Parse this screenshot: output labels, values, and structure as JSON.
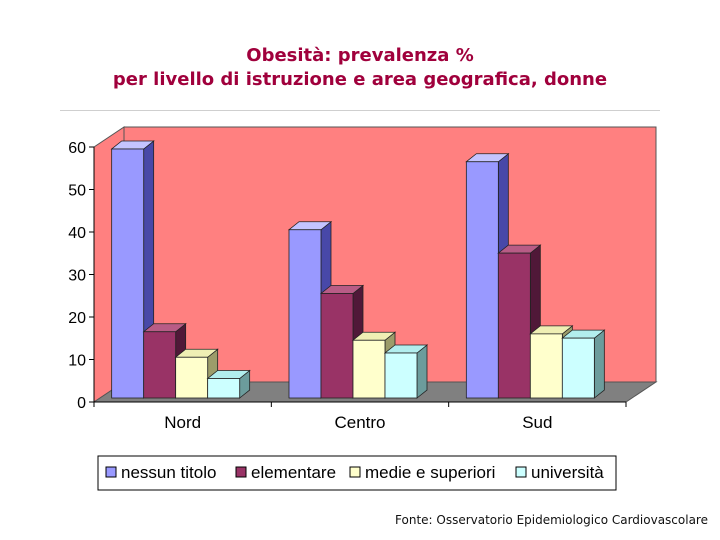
{
  "title": {
    "line1": "Obesità: prevalenza %",
    "line2": "per livello di istruzione e area geografica, donne"
  },
  "source": "Fonte: Osservatorio Epidemiologico Cardiovascolare",
  "chart_data": {
    "type": "bar",
    "title": "Obesità: prevalenza % per livello di istruzione e area geografica, donne",
    "xlabel": "",
    "ylabel": "",
    "categories": [
      "Nord",
      "Centro",
      "Sud"
    ],
    "ylim": [
      0,
      60
    ],
    "yticks": [
      0,
      10,
      20,
      30,
      40,
      50,
      60
    ],
    "grid": false,
    "legend": "bottom",
    "series": [
      {
        "name": "nessun titolo",
        "values": [
          60,
          41,
          57
        ],
        "color": "#9999ff",
        "side": "#4848a8",
        "top": "#c4c4ff"
      },
      {
        "name": "elementare",
        "values": [
          17,
          26,
          35.5
        ],
        "color": "#993366",
        "side": "#501838",
        "top": "#b85c86"
      },
      {
        "name": "medie e superiori",
        "values": [
          11,
          15,
          16.5
        ],
        "color": "#ffffcc",
        "side": "#9c9c6a",
        "top": "#efefb4"
      },
      {
        "name": "università",
        "values": [
          6,
          12,
          15.5
        ],
        "color": "#ccffff",
        "side": "#6c9c9c",
        "top": "#b2eeee"
      }
    ],
    "colors": {
      "wall": "#ff8080",
      "floor": "#808080",
      "axis": "#000000"
    }
  }
}
